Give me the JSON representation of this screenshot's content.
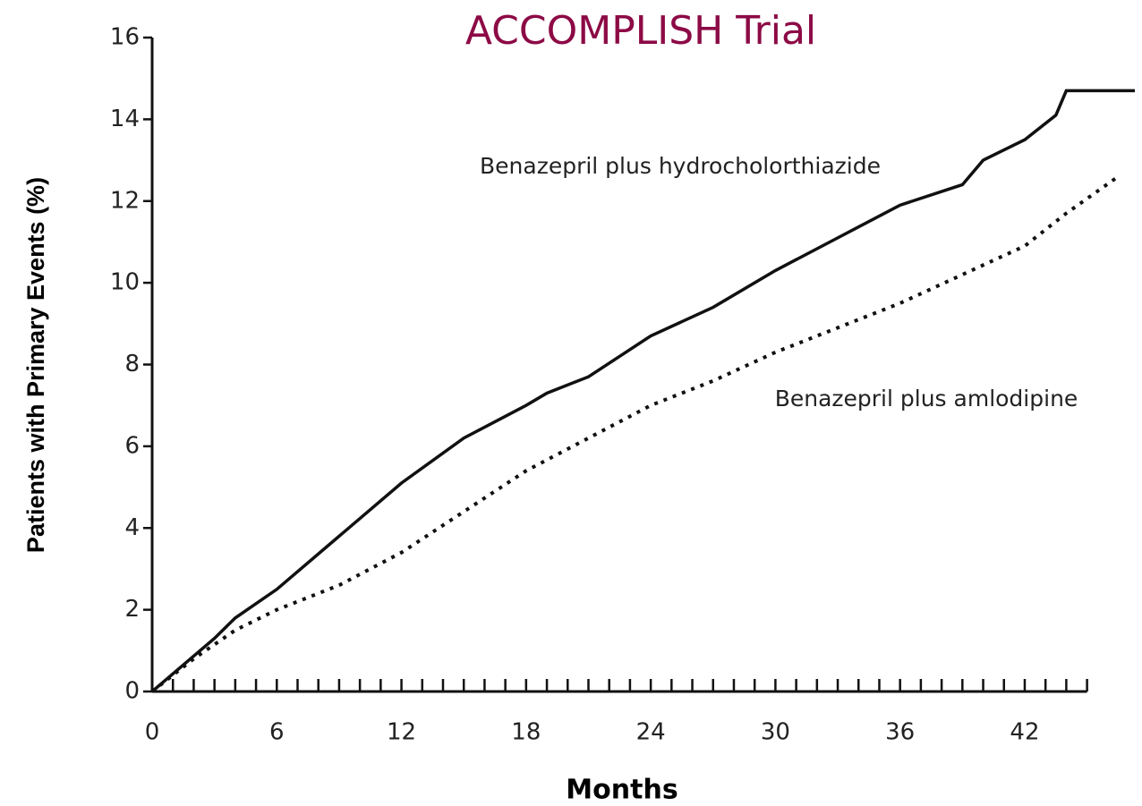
{
  "chart_data": {
    "type": "line",
    "title": "ACCOMPLISH Trial",
    "title_color": "#8c0a45",
    "x_label": "Months",
    "y_label": "Patients with Primary Events (%)",
    "xlim": [
      0,
      47.3
    ],
    "ylim": [
      0,
      16
    ],
    "xticks": [
      0,
      6,
      12,
      18,
      24,
      30,
      36,
      42
    ],
    "x_minor_ticks": [
      1,
      2,
      3,
      4,
      5,
      7,
      8,
      9,
      10,
      11,
      13,
      14,
      15,
      16,
      17,
      19,
      20,
      21,
      22,
      23,
      25,
      26,
      27,
      28,
      29,
      31,
      32,
      33,
      34,
      35,
      37,
      38,
      39,
      40,
      41,
      43,
      44,
      45
    ],
    "yticks": [
      0,
      2,
      4,
      6,
      8,
      10,
      12,
      14,
      16
    ],
    "grid": false,
    "series": [
      {
        "name": "Benazepril plus hydrocholorthiazide",
        "color": "#111111",
        "style": "solid",
        "x": [
          0,
          3,
          4,
          6,
          9,
          12,
          15,
          18,
          19,
          21,
          24,
          27,
          30,
          33,
          36,
          39,
          40,
          42,
          43.5,
          44,
          47.3
        ],
        "values": [
          0,
          1.3,
          1.8,
          2.5,
          3.8,
          5.1,
          6.2,
          7.0,
          7.3,
          7.7,
          8.7,
          9.4,
          10.3,
          11.1,
          11.9,
          12.4,
          13.0,
          13.5,
          14.1,
          14.7,
          14.7
        ]
      },
      {
        "name": "Benazepril plus amlodipine",
        "color": "#111111",
        "style": "dotted",
        "x": [
          0,
          2,
          4,
          6,
          9,
          12,
          15,
          18,
          21,
          24,
          27,
          30,
          33,
          36,
          39,
          42,
          44,
          46.5
        ],
        "values": [
          0,
          0.8,
          1.5,
          2.0,
          2.6,
          3.4,
          4.4,
          5.4,
          6.2,
          7.0,
          7.6,
          8.3,
          8.9,
          9.5,
          10.2,
          10.9,
          11.7,
          12.6
        ]
      }
    ]
  }
}
